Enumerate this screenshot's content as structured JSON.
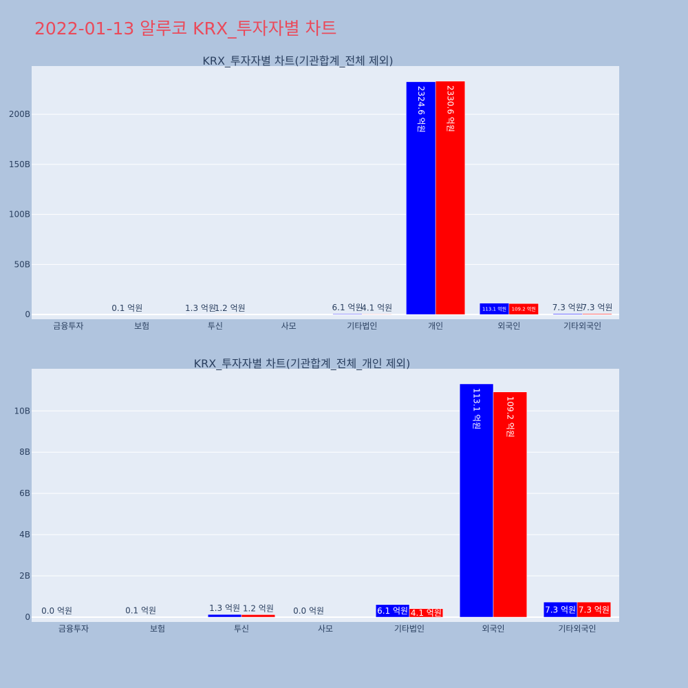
{
  "page_title": "2022-01-13 알루코 KRX_투자자별 차트",
  "colors": {
    "buy": "#0000ff",
    "sell": "#ff0000",
    "plot_bg": "#e5ecf6",
    "page_bg": "#b0c4de",
    "text": "#2a3f5f"
  },
  "chart_data": [
    {
      "type": "bar",
      "title": "KRX_투자자별 차트(기관합계_전체 제외)",
      "categories": [
        "금융투자",
        "보험",
        "투신",
        "사모",
        "기타법인",
        "개인",
        "외국인",
        "기타외국인"
      ],
      "series": [
        {
          "color": "#0000ff",
          "values": [
            0.0,
            0.1,
            1.3,
            0.0,
            6.1,
            2324.6,
            113.1,
            7.3
          ],
          "labels": [
            "",
            "0.1 억원",
            "1.3 억원",
            "",
            "6.1 억원",
            "2324.6 억원",
            "113.1 억원",
            "7.3 억원"
          ]
        },
        {
          "color": "#ff0000",
          "values": [
            0.0,
            0.0,
            1.2,
            0.0,
            4.1,
            2330.6,
            109.2,
            7.3
          ],
          "labels": [
            "",
            "",
            "1.2 억원",
            "",
            "4.1 억원",
            "2330.6 억원",
            "109.2 억원",
            "7.3 억원"
          ]
        }
      ],
      "yticks": [
        {
          "value": 0,
          "label": "0"
        },
        {
          "value": 500,
          "label": "50B"
        },
        {
          "value": 1000,
          "label": "100B"
        },
        {
          "value": 1500,
          "label": "150B"
        },
        {
          "value": 2000,
          "label": "200B"
        }
      ],
      "ylim": [
        -20,
        2330.6
      ],
      "grid": true
    },
    {
      "type": "bar",
      "title": "KRX_투자자별 차트(기관합계_전체_개인 제외)",
      "categories": [
        "금융투자",
        "보험",
        "투신",
        "사모",
        "기타법인",
        "외국인",
        "기타외국인"
      ],
      "series": [
        {
          "color": "#0000ff",
          "values": [
            0.0,
            0.1,
            1.3,
            0.0,
            6.1,
            113.1,
            7.3
          ],
          "labels": [
            "0.0 억원",
            "0.1 억원",
            "1.3 억원",
            "0.0 억원",
            "6.1 억원",
            "113.1 억원",
            "7.3 억원"
          ]
        },
        {
          "color": "#ff0000",
          "values": [
            0.0,
            0.0,
            1.2,
            0.0,
            4.1,
            109.2,
            7.3
          ],
          "labels": [
            "",
            "",
            "1.2 억원",
            "",
            "4.1 억원",
            "109.2 억원",
            "7.3 억원"
          ]
        }
      ],
      "yticks": [
        {
          "value": 0,
          "label": "0"
        },
        {
          "value": 20,
          "label": "2B"
        },
        {
          "value": 40,
          "label": "4B"
        },
        {
          "value": 60,
          "label": "6B"
        },
        {
          "value": 80,
          "label": "8B"
        },
        {
          "value": 100,
          "label": "10B"
        }
      ],
      "ylim": [
        -1,
        113.1
      ],
      "grid": true
    }
  ]
}
